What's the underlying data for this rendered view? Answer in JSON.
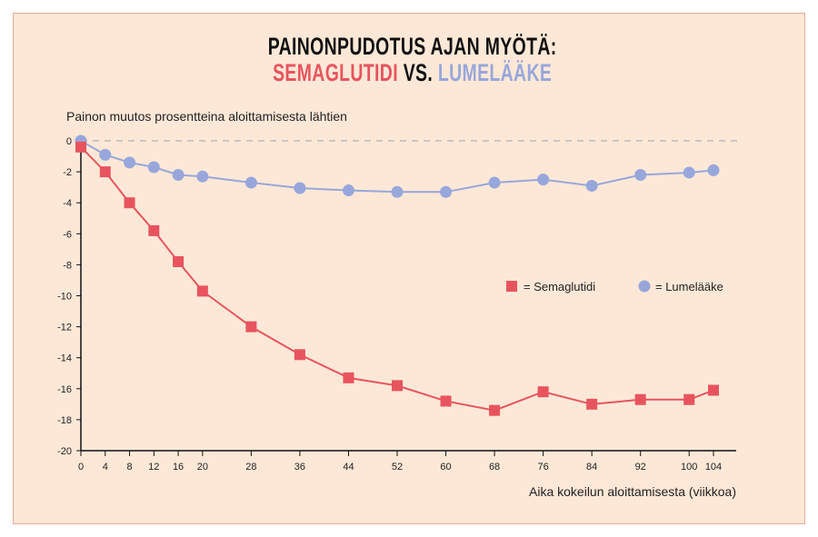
{
  "chart_data": {
    "type": "line",
    "title_line1": "PAINONPUDOTUS AJAN MYÖTÄ:",
    "title_line2": {
      "a": "SEMAGLUTIDI",
      "vs": " VS. ",
      "b": "LUMELÄÄKE"
    },
    "ylabel": "Painon muutos prosentteina aloittamisesta lähtien",
    "xlabel": "Aika kokeilun aloittamisesta (viikkoa)",
    "ylim": [
      -20,
      0
    ],
    "yticks": [
      0,
      -2,
      -4,
      -6,
      -8,
      -10,
      -12,
      -14,
      -16,
      -18,
      -20
    ],
    "xticks": [
      0,
      4,
      8,
      12,
      16,
      20,
      28,
      36,
      44,
      52,
      60,
      68,
      76,
      84,
      92,
      100,
      104
    ],
    "x": [
      0,
      4,
      8,
      12,
      16,
      20,
      28,
      36,
      44,
      52,
      60,
      68,
      76,
      84,
      92,
      100,
      104
    ],
    "zero_line": "dashed",
    "legend_placement": "right",
    "series": [
      {
        "name": "Semaglutidi",
        "legend_label": "= Semaglutidi",
        "marker": "square",
        "color": "#e8545e",
        "values": [
          -0.4,
          -2.0,
          -4.0,
          -5.8,
          -7.8,
          -9.7,
          -12.0,
          -13.8,
          -15.3,
          -15.8,
          -16.8,
          -17.4,
          -16.2,
          -17.0,
          -16.7,
          -16.7,
          -16.1
        ]
      },
      {
        "name": "Lumelääke",
        "legend_label": "= Lumelääke",
        "marker": "circle",
        "color": "#98a7db",
        "values": [
          0.0,
          -0.9,
          -1.4,
          -1.7,
          -2.2,
          -2.3,
          -2.7,
          -3.05,
          -3.2,
          -3.3,
          -3.3,
          -2.7,
          -2.5,
          -2.9,
          -2.2,
          -2.05,
          -1.9
        ]
      }
    ]
  }
}
